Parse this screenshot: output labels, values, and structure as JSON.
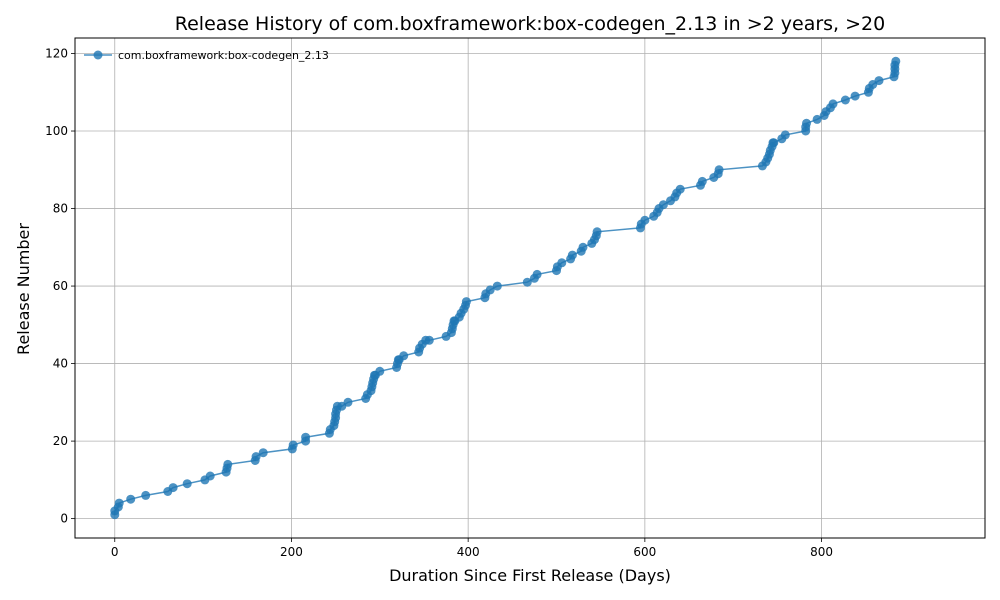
{
  "chart_data": {
    "type": "line",
    "title": "Release History of com.boxframework:box-codegen_2.13 in >2 years, >20",
    "xlabel": "Duration Since First Release (Days)",
    "ylabel": "Release Number",
    "xlim": [
      -45,
      985
    ],
    "ylim": [
      -5,
      124
    ],
    "xticks": [
      0,
      200,
      400,
      600,
      800
    ],
    "yticks": [
      0,
      20,
      40,
      60,
      80,
      100,
      120
    ],
    "grid": true,
    "legend_position": "top-left",
    "series_color": "#1f77b4",
    "series": [
      {
        "name": "com.boxframework:box-codegen_2.13",
        "x": [
          0,
          0,
          4,
          5,
          18,
          35,
          60,
          66,
          82,
          102,
          108,
          126,
          127,
          128,
          159,
          160,
          168,
          201,
          202,
          216,
          216,
          243,
          244,
          248,
          249,
          250,
          250,
          251,
          252,
          257,
          264,
          284,
          286,
          290,
          291,
          292,
          293,
          294,
          295,
          300,
          319,
          320,
          321,
          322,
          327,
          344,
          345,
          348,
          352,
          356,
          375,
          381,
          382,
          383,
          384,
          385,
          390,
          392,
          395,
          397,
          398,
          419,
          420,
          425,
          433,
          467,
          475,
          478,
          500,
          501,
          506,
          516,
          518,
          528,
          530,
          540,
          543,
          545,
          546,
          595,
          596,
          600,
          610,
          614,
          616,
          621,
          629,
          634,
          636,
          640,
          663,
          665,
          678,
          683,
          684,
          733,
          737,
          739,
          741,
          742,
          744,
          745,
          746,
          755,
          759,
          782,
          782,
          783,
          795,
          803,
          805,
          810,
          813,
          827,
          838,
          853,
          854,
          858,
          865,
          882,
          883,
          883,
          883,
          884
        ],
        "y": [
          1,
          2,
          3,
          4,
          5,
          6,
          7,
          8,
          9,
          10,
          11,
          12,
          13,
          14,
          15,
          16,
          17,
          18,
          19,
          20,
          21,
          22,
          23,
          24,
          25,
          26,
          27,
          28,
          29,
          29,
          30,
          31,
          32,
          33,
          34,
          35,
          36,
          37,
          37,
          38,
          39,
          40,
          41,
          41,
          42,
          43,
          44,
          45,
          46,
          46,
          47,
          48,
          49,
          50,
          51,
          51,
          52,
          53,
          54,
          55,
          56,
          57,
          58,
          59,
          60,
          61,
          62,
          63,
          64,
          65,
          66,
          67,
          68,
          69,
          70,
          71,
          72,
          73,
          74,
          75,
          76,
          77,
          78,
          79,
          80,
          81,
          82,
          83,
          84,
          85,
          86,
          87,
          88,
          89,
          90,
          91,
          92,
          93,
          94,
          95,
          96,
          97,
          97,
          98,
          99,
          100,
          101,
          102,
          103,
          104,
          105,
          106,
          107,
          108,
          109,
          110,
          111,
          112,
          113,
          114,
          115,
          116,
          117,
          118
        ]
      }
    ]
  }
}
